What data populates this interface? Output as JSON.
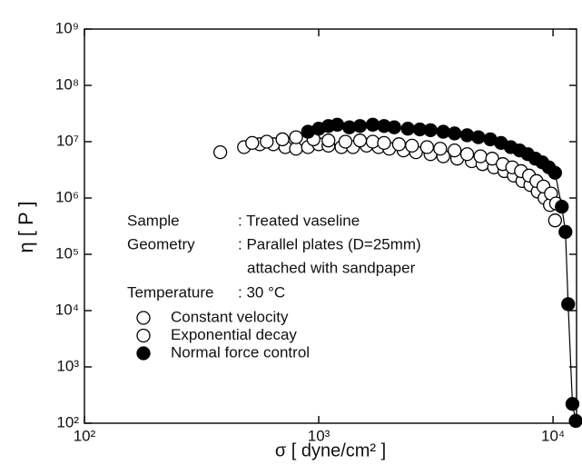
{
  "chart_data": {
    "type": "scatter",
    "xlabel": "σ  [ dyne/cm² ]",
    "ylabel": "η [ P ]",
    "log_x": true,
    "log_y": true,
    "xlim": [
      100,
      12600
    ],
    "ylim": [
      100,
      1000000000
    ],
    "xticks": [
      {
        "value": 100,
        "label": "10²"
      },
      {
        "value": 1000,
        "label": "10³"
      },
      {
        "value": 10000,
        "label": "10⁴"
      }
    ],
    "yticks": [
      {
        "value": 100,
        "label": "10²"
      },
      {
        "value": 1000,
        "label": "10³"
      },
      {
        "value": 10000,
        "label": "10⁴"
      },
      {
        "value": 100000,
        "label": "10⁵"
      },
      {
        "value": 1000000,
        "label": "10⁶"
      },
      {
        "value": 10000000,
        "label": "10⁷"
      },
      {
        "value": 100000000,
        "label": "10⁸"
      },
      {
        "value": 1000000000,
        "label": "10⁹"
      }
    ],
    "annotations": [
      {
        "label": "Sample",
        "text": ": Treated vaseline"
      },
      {
        "label": "Geometry",
        "text": ": Parallel plates (D=25mm)"
      },
      {
        "text": "attached with sandpaper"
      },
      {
        "label": "Temperature",
        "text": ": 30 °C"
      }
    ],
    "series": [
      {
        "name": "Constant velocity",
        "color": "#000000",
        "marker": "open",
        "line": false,
        "x": [
          380,
          480,
          560,
          640,
          720,
          800,
          900,
          1000,
          1100,
          1250,
          1400,
          1600,
          1800,
          2000,
          2300,
          2600,
          3000,
          3400,
          3900,
          4500,
          5000,
          5600,
          6200,
          6800,
          7400,
          8000,
          8600,
          9200,
          9700,
          10200
        ],
        "values": [
          6500000,
          8000000,
          9000000,
          9000000,
          8000000,
          7500000,
          8000000,
          9000000,
          8500000,
          8000000,
          8000000,
          8500000,
          8000000,
          7500000,
          7000000,
          6500000,
          6000000,
          5500000,
          5000000,
          4500000,
          4000000,
          3500000,
          3000000,
          2500000,
          2000000,
          1700000,
          1300000,
          1000000,
          750000,
          400000
        ]
      },
      {
        "name": "Exponential decay",
        "color": "#000000",
        "marker": "open",
        "line": false,
        "x": [
          520,
          600,
          700,
          800,
          950,
          1100,
          1300,
          1500,
          1700,
          1900,
          2200,
          2500,
          2900,
          3300,
          3800,
          4300,
          4900,
          5500,
          6100,
          6700,
          7300,
          7900,
          8500,
          9100,
          9800,
          10300
        ],
        "values": [
          9500000,
          10000000,
          11000000,
          12000000,
          11000000,
          10500000,
          10000000,
          10500000,
          10000000,
          9500000,
          9000000,
          8500000,
          8000000,
          7500000,
          7000000,
          6000000,
          5500000,
          5000000,
          4000000,
          3500000,
          3000000,
          2500000,
          2000000,
          1600000,
          1200000,
          800000
        ]
      },
      {
        "name": "Normal force control",
        "color": "#000000",
        "marker": "filled",
        "line": true,
        "x": [
          900,
          1000,
          1100,
          1200,
          1350,
          1500,
          1700,
          1900,
          2100,
          2400,
          2700,
          3000,
          3400,
          3800,
          4300,
          4800,
          5400,
          6000,
          6600,
          7200,
          7800,
          8400,
          9000,
          9600,
          10200,
          10900,
          11300,
          11600,
          12100,
          12500
        ],
        "values": [
          15000000,
          17000000,
          19000000,
          20000000,
          18000000,
          19000000,
          20000000,
          19000000,
          18000000,
          17000000,
          16500000,
          16000000,
          15000000,
          14000000,
          13000000,
          12000000,
          11000000,
          9500000,
          8000000,
          7000000,
          6000000,
          5000000,
          4300000,
          3500000,
          2800000,
          700000,
          250000,
          13000,
          220,
          110
        ]
      }
    ]
  }
}
